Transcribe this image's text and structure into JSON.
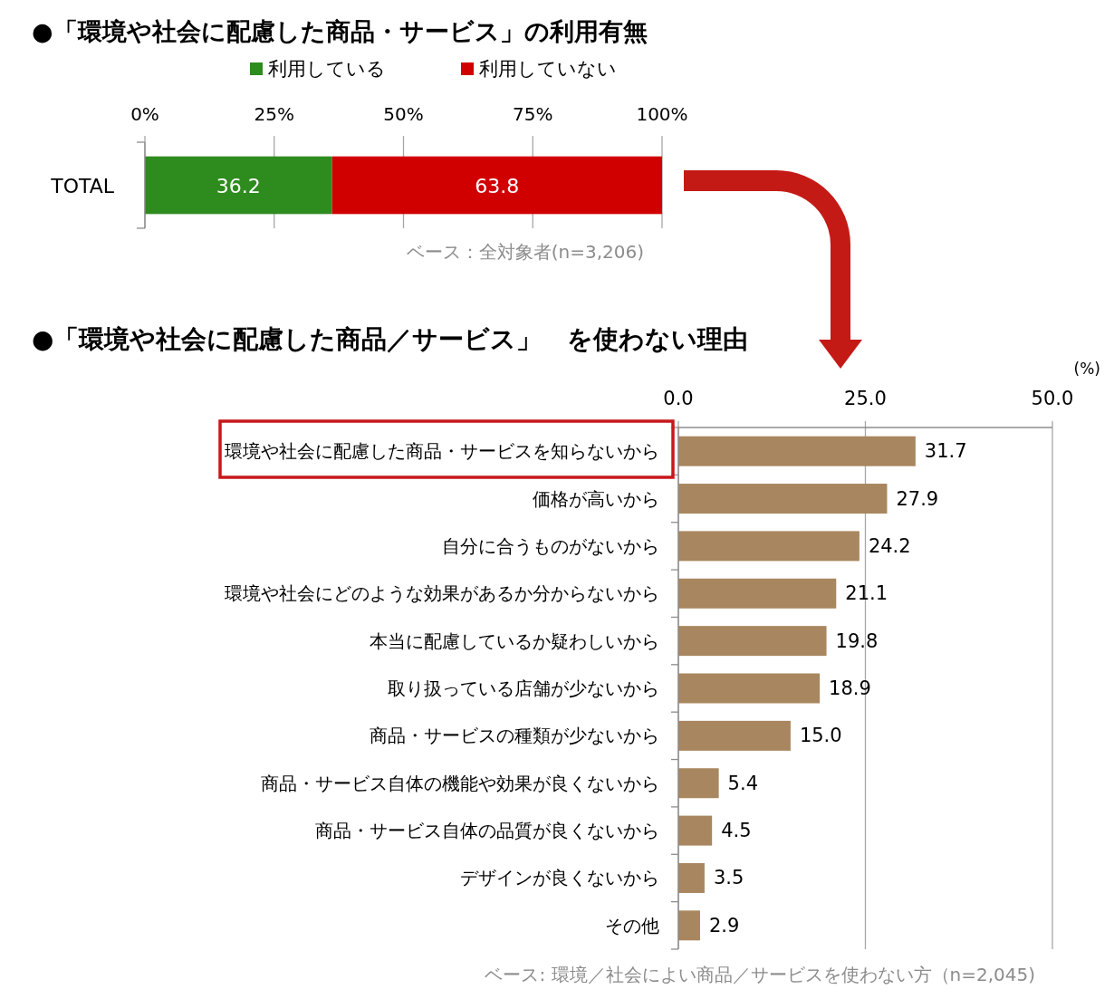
{
  "chart_data": [
    {
      "type": "bar",
      "orientation": "horizontal",
      "stacked": true,
      "title": "●「環境や社会に配慮した商品・サービス」の利用有無",
      "categories": [
        "TOTAL"
      ],
      "series": [
        {
          "name": "利用している",
          "color": "#2e8b1e",
          "values": [
            36.2
          ]
        },
        {
          "name": "利用していない",
          "color": "#d10000",
          "values": [
            63.8
          ]
        }
      ],
      "xlim": [
        0,
        100
      ],
      "xticks": [
        {
          "value": 0,
          "label": "0%"
        },
        {
          "value": 25,
          "label": "25%"
        },
        {
          "value": 50,
          "label": "50%"
        },
        {
          "value": 75,
          "label": "75%"
        },
        {
          "value": 100,
          "label": "100%"
        }
      ],
      "grid": "x",
      "legend": "top",
      "data_labels": true,
      "annotations": [
        "ベース：全対象者(n=3,206)"
      ]
    },
    {
      "type": "bar",
      "orientation": "horizontal",
      "title": "●「環境や社会に配慮した商品／サービス」　を使わない理由",
      "xlabel": "(%)",
      "categories": [
        "環境や社会に配慮した商品・サービスを知らないから",
        "価格が高いから",
        "自分に合うものがないから",
        "環境や社会にどのような効果があるか分からないから",
        "本当に配慮しているか疑わしいから",
        "取り扱っている店舗が少ないから",
        "商品・サービスの種類が少ないから",
        "商品・サービス自体の機能や効果が良くないから",
        "商品・サービス自体の品質が良くないから",
        "デザインが良くないから",
        "その他"
      ],
      "values": [
        31.7,
        27.9,
        24.2,
        21.1,
        19.8,
        18.9,
        15.0,
        5.4,
        4.5,
        3.5,
        2.9
      ],
      "color": "#a8865f",
      "value_labels": [
        "31.7",
        "27.9",
        "24.2",
        "21.1",
        "19.8",
        "18.9",
        "15.0",
        "5.4",
        "4.5",
        "3.5",
        "2.9"
      ],
      "xlim": [
        0,
        50
      ],
      "xticks": [
        {
          "value": 0,
          "label": "0.0"
        },
        {
          "value": 25,
          "label": "25.0"
        },
        {
          "value": 50,
          "label": "50.0"
        }
      ],
      "grid": "x",
      "annotations": [
        "ベース: 環境／社会によい商品／サービスを使わない方（n=2,045)"
      ]
    }
  ]
}
